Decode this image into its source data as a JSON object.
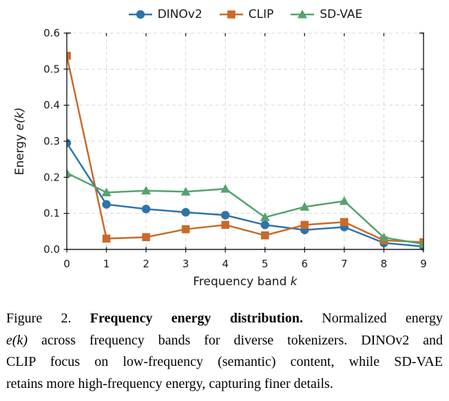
{
  "legend": {
    "items": [
      {
        "label": "DINOv2",
        "marker": "circle",
        "color": "#2E74A8"
      },
      {
        "label": "CLIP",
        "marker": "square",
        "color": "#C96A28"
      },
      {
        "label": "SD-VAE",
        "marker": "triangle",
        "color": "#54A26E"
      }
    ]
  },
  "axes": {
    "ylabel_text": "Energy ",
    "ylabel_math": "e(k)",
    "xlabel_text": "Frequency band ",
    "xlabel_math": "k",
    "yticks": [
      "0.0",
      "0.1",
      "0.2",
      "0.3",
      "0.4",
      "0.5",
      "0.6"
    ],
    "xticks": [
      "0",
      "1",
      "2",
      "3",
      "4",
      "5",
      "6",
      "7",
      "8",
      "9"
    ]
  },
  "chart_data": {
    "type": "line",
    "x": [
      0,
      1,
      2,
      3,
      4,
      5,
      6,
      7,
      8,
      9
    ],
    "series": [
      {
        "name": "DINOv2",
        "marker": "circle",
        "color": "#2E74A8",
        "values": [
          0.295,
          0.125,
          0.112,
          0.103,
          0.095,
          0.068,
          0.054,
          0.062,
          0.018,
          0.008
        ]
      },
      {
        "name": "CLIP",
        "marker": "square",
        "color": "#C96A28",
        "values": [
          0.537,
          0.03,
          0.034,
          0.056,
          0.068,
          0.039,
          0.068,
          0.076,
          0.025,
          0.02
        ]
      },
      {
        "name": "SD-VAE",
        "marker": "triangle",
        "color": "#54A26E",
        "values": [
          0.212,
          0.158,
          0.163,
          0.16,
          0.168,
          0.089,
          0.118,
          0.134,
          0.033,
          0.015
        ]
      }
    ],
    "title": "",
    "xlabel": "Frequency band k",
    "ylabel": "Energy e(k)",
    "xlim": [
      0,
      9
    ],
    "ylim": [
      0,
      0.6
    ],
    "grid": "dashed both axes",
    "legend_position": "top center horizontal, no frame"
  },
  "caption": {
    "lines": [
      [
        {
          "text": "Figure 2.  ",
          "style": "n"
        },
        {
          "text": "Frequency energy distribution.",
          "style": "b"
        },
        {
          "text": "  Normalized energy",
          "style": "n"
        }
      ],
      [
        {
          "text": "e(k)",
          "style": "i"
        },
        {
          "text": " across frequency bands for diverse tokenizers. DINOv2 and",
          "style": "n"
        }
      ],
      [
        {
          "text": "CLIP focus on low-frequency (semantic) content, while SD-VAE",
          "style": "n"
        }
      ],
      [
        {
          "text": "retains more high-frequency energy, capturing finer details.",
          "style": "n"
        }
      ]
    ]
  },
  "colors": {
    "spine": "#1c1c1c",
    "grid": "#d8d8d8",
    "tick_label": "#1a1a1a"
  }
}
